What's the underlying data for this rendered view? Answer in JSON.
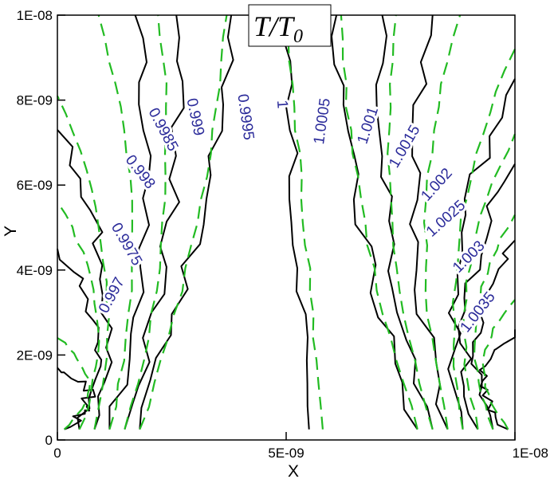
{
  "chart_data": {
    "type": "contour",
    "title": "T/T",
    "title_subscript": "0",
    "xlabel": "X",
    "ylabel": "Y",
    "xlim": [
      0,
      1e-08
    ],
    "ylim": [
      0,
      1e-08
    ],
    "x_ticks": [
      {
        "value": 0,
        "label": "0"
      },
      {
        "value": 5e-09,
        "label": "5E-09"
      },
      {
        "value": 1e-08,
        "label": "1E-08"
      }
    ],
    "y_ticks": [
      {
        "value": 0,
        "label": "0"
      },
      {
        "value": 2e-09,
        "label": "2E-09"
      },
      {
        "value": 4e-09,
        "label": "4E-09"
      },
      {
        "value": 6e-09,
        "label": "6E-09"
      },
      {
        "value": 8e-09,
        "label": "8E-09"
      },
      {
        "value": 1e-08,
        "label": "1E-08"
      }
    ],
    "colors": {
      "simulation": "#000000",
      "analytic": "#22bb22",
      "label": "#2b2b9a"
    },
    "contours": [
      {
        "level": "0.997",
        "sim_top_x": 0.0,
        "sim_side_y": 1.7e-09,
        "ana_top_x": 0.0,
        "ana_side_y": 2.4e-09,
        "label_at": [
          1.2e-09,
          3.4e-09
        ],
        "label_angle": -62
      },
      {
        "level": "0.9975",
        "sim_top_x": 0.0,
        "sim_side_y": 4.5e-09,
        "ana_top_x": 0.0,
        "ana_side_y": 5.6e-09,
        "label_at": [
          1.5e-09,
          4.6e-09
        ],
        "label_angle": 60
      },
      {
        "level": "0.998",
        "sim_top_x": 0.0,
        "sim_side_y": 7.3e-09,
        "ana_top_x": 0.0,
        "ana_side_y": 8.1e-09,
        "label_at": [
          1.8e-09,
          6.3e-09
        ],
        "label_angle": 52
      },
      {
        "level": "0.9985",
        "sim_top_x": 1.7e-09,
        "sim_side_y": 1e-08,
        "ana_top_x": 9e-10,
        "ana_side_y": 1e-08,
        "label_at": [
          2.3e-09,
          7.3e-09
        ],
        "label_angle": 62
      },
      {
        "level": "0.999",
        "sim_top_x": 2.6e-09,
        "sim_side_y": 1e-08,
        "ana_top_x": 2.2e-09,
        "ana_side_y": 1e-08,
        "label_at": [
          3e-09,
          7.6e-09
        ],
        "label_angle": 78
      },
      {
        "level": "0.9995",
        "sim_top_x": 3.8e-09,
        "sim_side_y": 1e-08,
        "ana_top_x": 3.7e-09,
        "ana_side_y": 1e-08,
        "label_at": [
          4.1e-09,
          7.6e-09
        ],
        "label_angle": 82
      },
      {
        "level": "1",
        "sim_top_x": 4.9e-09,
        "sim_side_y": 1e-08,
        "ana_top_x": 5e-09,
        "ana_side_y": 1e-08,
        "label_at": [
          4.9e-09,
          7.9e-09
        ],
        "label_angle": 86
      },
      {
        "level": "1.0005",
        "sim_top_x": 6.1e-09,
        "sim_side_y": 1e-08,
        "ana_top_x": 6.2e-09,
        "ana_side_y": 1e-08,
        "label_at": [
          5.8e-09,
          7.5e-09
        ],
        "label_angle": -82
      },
      {
        "level": "1.001",
        "sim_top_x": 7.1e-09,
        "sim_side_y": 1e-08,
        "ana_top_x": 7.4e-09,
        "ana_side_y": 1e-08,
        "label_at": [
          6.8e-09,
          7.4e-09
        ],
        "label_angle": -72
      },
      {
        "level": "1.0015",
        "sim_top_x": 8.2e-09,
        "sim_side_y": 1e-08,
        "ana_top_x": 8.8e-09,
        "ana_side_y": 1e-08,
        "label_at": [
          7.6e-09,
          6.9e-09
        ],
        "label_angle": -60
      },
      {
        "level": "1.002",
        "sim_top_x": 1e-08,
        "sim_side_y": 8.5e-09,
        "ana_top_x": 1e-08,
        "ana_side_y": 9.2e-09,
        "label_at": [
          8.3e-09,
          6e-09
        ],
        "label_angle": -48
      },
      {
        "level": "1.0025",
        "sim_top_x": 1e-08,
        "sim_side_y": 6.5e-09,
        "ana_top_x": 1e-08,
        "ana_side_y": 7.2e-09,
        "label_at": [
          8.5e-09,
          5.2e-09
        ],
        "label_angle": -42
      },
      {
        "level": "1.003",
        "sim_top_x": 1e-08,
        "sim_side_y": 4.7e-09,
        "ana_top_x": 1e-08,
        "ana_side_y": 5.3e-09,
        "label_at": [
          9e-09,
          4.3e-09
        ],
        "label_angle": -45
      },
      {
        "level": "1.0035",
        "sim_top_x": 1e-08,
        "sim_side_y": 2.6e-09,
        "ana_top_x": 1e-08,
        "ana_side_y": 3.3e-09,
        "label_at": [
          9.2e-09,
          3e-09
        ],
        "label_angle": -52
      }
    ]
  }
}
